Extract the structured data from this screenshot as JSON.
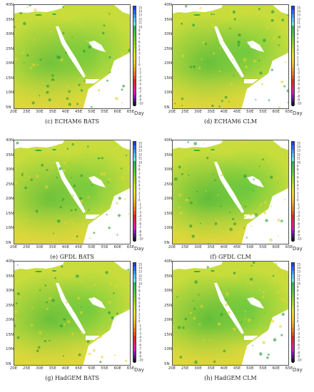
{
  "lat_labels": [
    "40N",
    "35N",
    "30N",
    "25N",
    "20N",
    "15N",
    "10N",
    "5N"
  ],
  "lon_labels": [
    "20E",
    "25E",
    "30E",
    "35E",
    "40E",
    "45E",
    "50E",
    "55E",
    "60E",
    "65E"
  ],
  "colorbar": {
    "ticks": [
      "15",
      "14",
      "13",
      "12",
      "11",
      "10",
      "9",
      "8",
      "7",
      "6",
      "5",
      "4",
      "3",
      "2",
      "1",
      "0",
      "-1",
      "-2",
      "-3",
      "-4",
      "-5",
      "-6",
      "-7",
      "-8",
      "-9",
      "-10"
    ],
    "colors": [
      "#1e3cff",
      "#2a6bff",
      "#3d9bff",
      "#52c8ff",
      "#6fe6f0",
      "#2db84a",
      "#3cc445",
      "#52cc3b",
      "#6ad332",
      "#8ad82a",
      "#a8dd26",
      "#c6e22a",
      "#e0e42e",
      "#eedc30",
      "#f3cc2f",
      "#f2b52a",
      "#ef9a24",
      "#ea7a1e",
      "#e35518",
      "#da2c16",
      "#e61e5a",
      "#e61e8c",
      "#c81eb4",
      "#8c14b4",
      "#50148c",
      "#1a1a1a"
    ],
    "unit": "Day"
  },
  "panels": [
    {
      "caption": "(c)   ECHAM6 BATS"
    },
    {
      "caption": "(d)   ECHAM6 CLM"
    },
    {
      "caption": "(e)   GFDL BATS"
    },
    {
      "caption": "(f)   GFDL CLM"
    },
    {
      "caption": "(g)   HadGEM BATS"
    },
    {
      "caption": "(h)   HadGEM CLM"
    }
  ]
}
